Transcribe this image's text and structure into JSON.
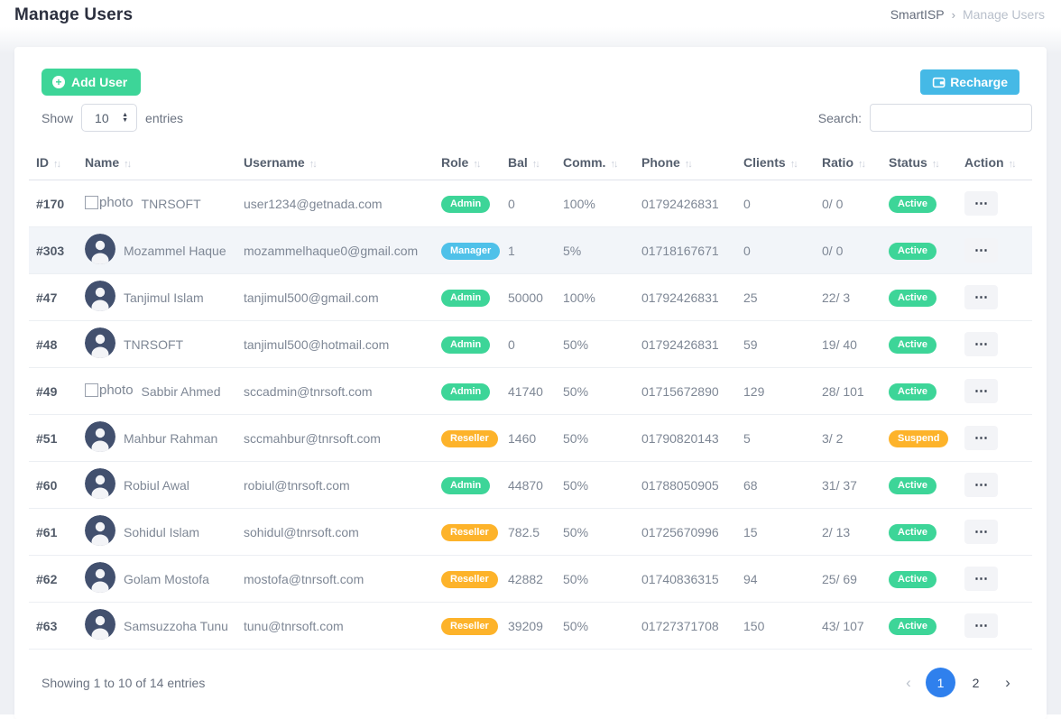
{
  "header": {
    "title": "Manage Users",
    "breadcrumb": {
      "root": "SmartISP",
      "separator": "›",
      "current": "Manage Users"
    }
  },
  "toolbar": {
    "add_user": "Add User",
    "recharge": "Recharge",
    "show_label": "Show",
    "entries_label": "entries",
    "page_length": "10",
    "search_label": "Search:",
    "search_value": ""
  },
  "icons": {
    "add": "+",
    "ellipsis": "⋯",
    "sort_asc": "↑",
    "sort_desc": "↓",
    "spinner_up": "▲",
    "spinner_down": "▼"
  },
  "table": {
    "columns": [
      "ID",
      "Name",
      "Username",
      "Role",
      "Bal",
      "Comm.",
      "Phone",
      "Clients",
      "Ratio",
      "Status",
      "Action"
    ],
    "broken_photo_alt": "photo",
    "rows": [
      {
        "id": "#170",
        "avatar": "broken",
        "name": "TNRSOFT",
        "username": "user1234@getnada.com",
        "role": "Admin",
        "bal": "0",
        "comm": "100%",
        "phone": "01792426831",
        "clients": "0",
        "ratio": "0/ 0",
        "status": "Active"
      },
      {
        "id": "#303",
        "avatar": "icon",
        "name": "Mozammel Haque",
        "username": "mozammelhaque0@gmail.com",
        "role": "Manager",
        "bal": "1",
        "comm": "5%",
        "phone": "01718167671",
        "clients": "0",
        "ratio": "0/ 0",
        "status": "Active"
      },
      {
        "id": "#47",
        "avatar": "icon",
        "name": "Tanjimul Islam",
        "username": "tanjimul500@gmail.com",
        "role": "Admin",
        "bal": "50000",
        "comm": "100%",
        "phone": "01792426831",
        "clients": "25",
        "ratio": "22/ 3",
        "status": "Active"
      },
      {
        "id": "#48",
        "avatar": "icon",
        "name": "TNRSOFT",
        "username": "tanjimul500@hotmail.com",
        "role": "Admin",
        "bal": "0",
        "comm": "50%",
        "phone": "01792426831",
        "clients": "59",
        "ratio": "19/ 40",
        "status": "Active"
      },
      {
        "id": "#49",
        "avatar": "broken",
        "name": "Sabbir Ahmed",
        "username": "sccadmin@tnrsoft.com",
        "role": "Admin",
        "bal": "41740",
        "comm": "50%",
        "phone": "01715672890",
        "clients": "129",
        "ratio": "28/ 101",
        "status": "Active"
      },
      {
        "id": "#51",
        "avatar": "icon",
        "name": "Mahbur Rahman",
        "username": "sccmahbur@tnrsoft.com",
        "role": "Reseller",
        "bal": "1460",
        "comm": "50%",
        "phone": "01790820143",
        "clients": "5",
        "ratio": "3/ 2",
        "status": "Suspend"
      },
      {
        "id": "#60",
        "avatar": "icon",
        "name": "Robiul Awal",
        "username": "robiul@tnrsoft.com",
        "role": "Admin",
        "bal": "44870",
        "comm": "50%",
        "phone": "01788050905",
        "clients": "68",
        "ratio": "31/ 37",
        "status": "Active"
      },
      {
        "id": "#61",
        "avatar": "icon",
        "name": "Sohidul Islam",
        "username": "sohidul@tnrsoft.com",
        "role": "Reseller",
        "bal": "782.5",
        "comm": "50%",
        "phone": "01725670996",
        "clients": "15",
        "ratio": "2/ 13",
        "status": "Active"
      },
      {
        "id": "#62",
        "avatar": "icon",
        "name": "Golam Mostofa",
        "username": "mostofa@tnrsoft.com",
        "role": "Reseller",
        "bal": "42882",
        "comm": "50%",
        "phone": "01740836315",
        "clients": "94",
        "ratio": "25/ 69",
        "status": "Active"
      },
      {
        "id": "#63",
        "avatar": "icon",
        "name": "Samsuzzoha Tunu",
        "username": "tunu@tnrsoft.com",
        "role": "Reseller",
        "bal": "39209",
        "comm": "50%",
        "phone": "01727371708",
        "clients": "150",
        "ratio": "43/ 107",
        "status": "Active"
      }
    ]
  },
  "footer": {
    "info": "Showing 1 to 10 of 14 entries",
    "pagination": {
      "prev": "‹",
      "pages": [
        "1",
        "2"
      ],
      "active_page": "1",
      "next": "›"
    }
  },
  "colors": {
    "admin_badge": "#3dd598",
    "manager_badge": "#4fc1e9",
    "reseller_badge": "#fdb32a",
    "active_badge": "#3dd598",
    "suspend_badge": "#fdb32a",
    "primary_button": "#3dd598",
    "recharge_button": "#45b9e6",
    "pagination_active": "#2f80ed"
  }
}
